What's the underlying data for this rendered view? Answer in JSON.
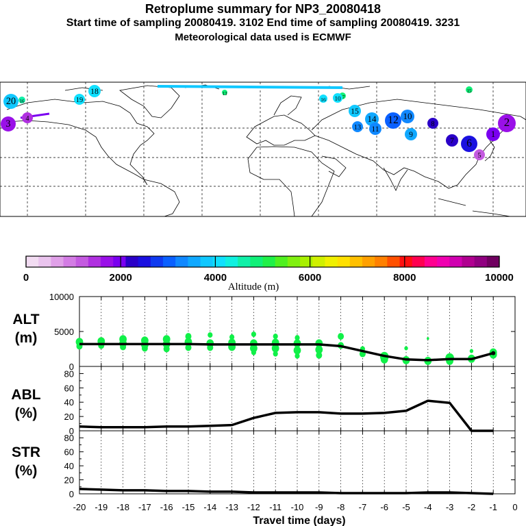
{
  "header": {
    "title": "Retroplume summary for NP3_20080418",
    "subtitle": "Start time of sampling 20080419.  3102     End time of sampling 20080419.  3231",
    "met": "Meteorological data used is ECMWF"
  },
  "colorbar": {
    "label": "Altitude (m)",
    "ticks": [
      "0",
      "2000",
      "4000",
      "6000",
      "8000",
      "10000"
    ],
    "colors": [
      "#f2dcf2",
      "#eac4ee",
      "#e0a0e8",
      "#d37ce4",
      "#c45ae0",
      "#b030e0",
      "#9a10e8",
      "#7a00f0",
      "#2a00c8",
      "#1a10e0",
      "#0f3af0",
      "#0a60ff",
      "#1088ff",
      "#10a8ff",
      "#10c8ff",
      "#10e0ff",
      "#10f0e0",
      "#10f0a8",
      "#10f078",
      "#20f048",
      "#50f020",
      "#80f010",
      "#a8f000",
      "#d0f000",
      "#f0f000",
      "#ffe000",
      "#ffc000",
      "#ffa000",
      "#ff8000",
      "#ff5000",
      "#ff1010",
      "#ff0050",
      "#ff0090",
      "#f000b0",
      "#d000b0",
      "#b00090",
      "#900080",
      "#700060"
    ]
  },
  "map": {
    "markers": [
      {
        "label": "20",
        "color": "#10c8ff"
      },
      {
        "label": "16",
        "color": "#10f0a8"
      },
      {
        "label": "19",
        "color": "#10e0ff"
      },
      {
        "label": "18",
        "color": "#10e0ff"
      },
      {
        "label": "3",
        "color": "#9a10e8"
      },
      {
        "label": "4",
        "color": "#b030e0"
      },
      {
        "label": "13",
        "color": "#10f078"
      },
      {
        "label": "16",
        "color": "#10e0ff"
      },
      {
        "label": "17",
        "color": "#10f078"
      },
      {
        "label": "10",
        "color": "#10e0ff"
      },
      {
        "label": "15",
        "color": "#10c8ff"
      },
      {
        "label": "14",
        "color": "#10a8ff"
      },
      {
        "label": "13",
        "color": "#1088ff"
      },
      {
        "label": "12",
        "color": "#0a60ff"
      },
      {
        "label": "11",
        "color": "#1088ff"
      },
      {
        "label": "10",
        "color": "#1088ff"
      },
      {
        "label": "9",
        "color": "#10a8ff"
      },
      {
        "label": "8",
        "color": "#2a00c8"
      },
      {
        "label": "7",
        "color": "#2a00c8"
      },
      {
        "label": "6",
        "color": "#1a10e0"
      },
      {
        "label": "5",
        "color": "#c45ae0"
      },
      {
        "label": "2",
        "color": "#9a10e8"
      },
      {
        "label": "1",
        "color": "#7a00f0"
      },
      {
        "label": "15",
        "color": "#10f078"
      }
    ]
  },
  "chart_data": [
    {
      "type": "line",
      "panel": "ALT",
      "ylabel": "ALT\n(m)",
      "ylabel_lines": [
        "ALT",
        "(m)"
      ],
      "ylim": [
        0,
        10000
      ],
      "yticks": [
        "10000",
        "5000",
        "0"
      ],
      "x": [
        -20,
        -19,
        -18,
        -17,
        -16,
        -15,
        -14,
        -13,
        -12,
        -11,
        -10,
        -9,
        -8,
        -7,
        -6,
        -5,
        -4,
        -3,
        -2,
        -1
      ],
      "series": [
        {
          "name": "median altitude",
          "values": [
            3200,
            3200,
            3200,
            3200,
            3200,
            3200,
            3150,
            3150,
            3150,
            3150,
            3150,
            3150,
            2900,
            2200,
            1500,
            1000,
            900,
            1050,
            1050,
            1900
          ]
        }
      ],
      "scatter_color": "#10f048"
    },
    {
      "type": "line",
      "panel": "ABL",
      "ylabel_lines": [
        "ABL",
        "(%)"
      ],
      "ylim": [
        0,
        90
      ],
      "yticks": [
        "80",
        "60",
        "40",
        "20",
        "0"
      ],
      "x": [
        -20,
        -19,
        -18,
        -17,
        -16,
        -15,
        -14,
        -13,
        -12,
        -11,
        -10,
        -9,
        -8,
        -7,
        -6,
        -5,
        -4,
        -3,
        -2,
        -1
      ],
      "series": [
        {
          "name": "ABL fraction",
          "values": [
            6,
            5,
            5,
            5,
            6,
            6,
            7,
            8,
            18,
            25,
            26,
            26,
            24,
            24,
            25,
            28,
            42,
            39,
            0,
            0
          ]
        }
      ]
    },
    {
      "type": "line",
      "panel": "STR",
      "ylabel_lines": [
        "STR",
        "(%)"
      ],
      "ylim": [
        0,
        90
      ],
      "yticks": [
        "80",
        "60",
        "40",
        "20",
        "0"
      ],
      "x": [
        -20,
        -19,
        -18,
        -17,
        -16,
        -15,
        -14,
        -13,
        -12,
        -11,
        -10,
        -9,
        -8,
        -7,
        -6,
        -5,
        -4,
        -3,
        -2,
        -1
      ],
      "series": [
        {
          "name": "stratospheric fraction",
          "values": [
            7,
            6,
            5,
            5,
            4,
            4,
            3,
            3,
            2,
            2,
            2,
            2,
            1,
            1,
            1,
            1,
            2,
            2,
            1,
            0
          ]
        }
      ],
      "xlabel": "Travel time (days)",
      "xticklabels": [
        "-20",
        "-19",
        "-18",
        "-17",
        "-16",
        "-15",
        "-14",
        "-13",
        "-12",
        "-11",
        "-10",
        "-9",
        "-8",
        "-7",
        "-6",
        "-5",
        "-4",
        "-3",
        "-2",
        "-1",
        "0"
      ],
      "xlim": [
        -20,
        0
      ]
    }
  ]
}
